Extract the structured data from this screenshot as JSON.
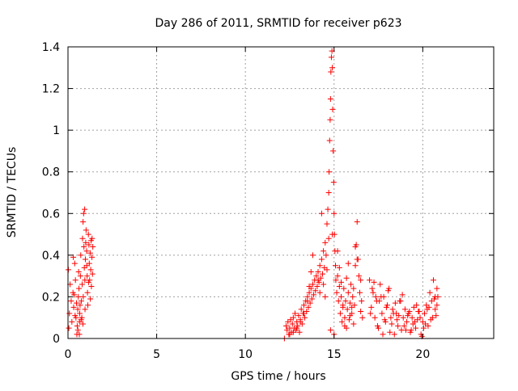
{
  "chart_data": {
    "type": "scatter",
    "title": "Day 286 of 2011, SRMTID for receiver p623",
    "xlabel": "GPS time / hours",
    "ylabel": "SRMTID / TECUs",
    "xlim": [
      0,
      24
    ],
    "ylim": [
      0,
      1.4
    ],
    "x_ticks": [
      0,
      5,
      10,
      15,
      20
    ],
    "x_tick_labels": [
      "0",
      "5",
      "10",
      "15",
      "20"
    ],
    "y_ticks": [
      0,
      0.2,
      0.4,
      0.6,
      0.8,
      1.0,
      1.2,
      1.4
    ],
    "y_tick_labels": [
      "0",
      "0.2",
      "0.4",
      "0.6",
      "0.8",
      "1",
      "1.2",
      "1.4"
    ],
    "grid": true,
    "marker": "+",
    "series": [
      {
        "name": "SRMTID",
        "color": "#ff0000",
        "x": [
          0.02,
          0.05,
          0.08,
          0.12,
          0.18,
          0.22,
          0.28,
          0.32,
          0.38,
          0.42,
          0.45,
          0.5,
          0.52,
          0.55,
          0.58,
          0.6,
          0.62,
          0.65,
          0.68,
          0.7,
          0.72,
          0.75,
          0.78,
          0.8,
          0.82,
          0.85,
          0.88,
          0.9,
          0.92,
          0.95,
          0.98,
          1.0,
          1.02,
          1.05,
          1.08,
          1.1,
          1.12,
          1.15,
          1.18,
          1.2,
          1.22,
          1.25,
          1.28,
          1.3,
          1.32,
          1.35,
          1.38,
          1.4,
          0.3,
          0.35,
          0.48,
          0.66,
          0.74,
          0.86,
          0.96,
          1.06,
          1.16,
          1.26,
          1.36,
          0.4,
          0.56,
          0.64,
          0.84,
          0.94,
          12.2,
          12.3,
          12.35,
          12.4,
          12.45,
          12.5,
          12.55,
          12.6,
          12.65,
          12.7,
          12.75,
          12.8,
          12.85,
          12.9,
          12.95,
          13.0,
          13.05,
          13.1,
          13.15,
          13.2,
          13.25,
          13.3,
          13.35,
          13.4,
          13.45,
          13.5,
          13.55,
          13.6,
          13.65,
          13.7,
          13.75,
          13.8,
          13.85,
          13.9,
          13.95,
          14.0,
          14.05,
          14.1,
          14.15,
          14.2,
          14.25,
          14.3,
          14.35,
          14.4,
          14.45,
          14.5,
          14.55,
          14.6,
          14.65,
          14.7,
          14.72,
          14.75,
          14.78,
          14.8,
          14.82,
          14.85,
          14.88,
          14.9,
          14.92,
          14.95,
          14.98,
          15.0,
          15.02,
          15.05,
          15.08,
          15.1,
          15.15,
          15.2,
          15.25,
          15.3,
          15.35,
          15.4,
          15.45,
          15.5,
          15.55,
          15.6,
          15.65,
          15.7,
          15.75,
          15.8,
          15.85,
          15.9,
          15.95,
          16.0,
          16.05,
          16.1,
          16.15,
          16.2,
          16.25,
          16.3,
          16.35,
          16.4,
          16.45,
          16.5,
          16.55,
          16.6,
          13.6,
          13.7,
          13.8,
          14.1,
          14.3,
          14.5,
          14.6,
          14.8,
          14.9,
          15.0,
          15.2,
          15.4,
          15.6,
          15.8,
          16.0,
          16.2,
          12.5,
          12.7,
          12.9,
          13.1,
          13.3,
          13.5,
          14.2,
          14.4,
          14.7,
          15.3,
          15.5,
          15.7,
          15.9,
          16.1,
          16.3,
          16.5,
          17.0,
          17.1,
          17.2,
          17.3,
          17.4,
          17.5,
          17.6,
          17.7,
          17.8,
          17.9,
          18.0,
          18.1,
          18.2,
          18.3,
          18.4,
          18.5,
          18.6,
          18.7,
          18.8,
          18.9,
          19.0,
          19.1,
          19.2,
          19.3,
          19.4,
          19.5,
          19.6,
          19.7,
          19.8,
          19.9,
          20.0,
          20.1,
          20.2,
          20.3,
          20.4,
          20.5,
          20.6,
          20.7,
          20.8,
          20.85,
          17.05,
          17.25,
          17.45,
          17.65,
          17.85,
          18.05,
          18.25,
          18.45,
          18.65,
          18.85,
          19.05,
          19.25,
          19.45,
          19.65,
          19.85,
          20.05,
          20.25,
          20.45,
          20.65,
          20.75,
          17.15,
          17.35,
          17.55,
          17.75,
          17.95,
          18.15,
          18.35,
          18.55,
          18.75,
          18.95,
          19.15,
          19.35,
          19.55,
          19.75,
          19.95,
          20.15,
          20.35,
          20.55,
          20.7,
          20.8
        ],
        "y": [
          0.33,
          0.05,
          0.12,
          0.26,
          0.18,
          0.08,
          0.22,
          0.15,
          0.36,
          0.28,
          0.1,
          0.02,
          0.06,
          0.14,
          0.2,
          0.32,
          0.24,
          0.08,
          0.16,
          0.3,
          0.4,
          0.18,
          0.1,
          0.26,
          0.48,
          0.56,
          0.6,
          0.44,
          0.34,
          0.28,
          0.38,
          0.46,
          0.52,
          0.42,
          0.3,
          0.22,
          0.16,
          0.5,
          0.45,
          0.36,
          0.28,
          0.41,
          0.33,
          0.47,
          0.25,
          0.39,
          0.31,
          0.44,
          0.39,
          0.21,
          0.17,
          0.12,
          0.09,
          0.2,
          0.14,
          0.35,
          0.27,
          0.19,
          0.48,
          0.11,
          0.04,
          0.02,
          0.07,
          0.62,
          0.0,
          0.06,
          0.04,
          0.08,
          0.02,
          0.05,
          0.09,
          0.03,
          0.07,
          0.1,
          0.05,
          0.12,
          0.04,
          0.08,
          0.06,
          0.11,
          0.03,
          0.09,
          0.14,
          0.07,
          0.12,
          0.16,
          0.1,
          0.18,
          0.13,
          0.2,
          0.15,
          0.22,
          0.17,
          0.24,
          0.19,
          0.26,
          0.21,
          0.28,
          0.23,
          0.3,
          0.25,
          0.32,
          0.27,
          0.35,
          0.29,
          0.38,
          0.31,
          0.42,
          0.34,
          0.46,
          0.4,
          0.55,
          0.62,
          0.7,
          0.8,
          0.95,
          1.05,
          1.15,
          1.28,
          1.35,
          1.38,
          1.3,
          1.1,
          0.9,
          0.75,
          0.6,
          0.5,
          0.42,
          0.35,
          0.28,
          0.22,
          0.3,
          0.18,
          0.25,
          0.12,
          0.2,
          0.08,
          0.15,
          0.24,
          0.1,
          0.18,
          0.05,
          0.14,
          0.22,
          0.09,
          0.17,
          0.26,
          0.12,
          0.2,
          0.07,
          0.16,
          0.35,
          0.45,
          0.56,
          0.38,
          0.3,
          0.22,
          0.28,
          0.18,
          0.1,
          0.25,
          0.32,
          0.4,
          0.28,
          0.6,
          0.2,
          0.33,
          0.04,
          0.5,
          0.02,
          0.42,
          0.27,
          0.06,
          0.36,
          0.15,
          0.44,
          0.02,
          0.03,
          0.05,
          0.08,
          0.12,
          0.18,
          0.22,
          0.26,
          0.48,
          0.34,
          0.16,
          0.29,
          0.11,
          0.24,
          0.38,
          0.13,
          0.28,
          0.15,
          0.22,
          0.1,
          0.18,
          0.05,
          0.26,
          0.12,
          0.2,
          0.08,
          0.16,
          0.24,
          0.1,
          0.14,
          0.02,
          0.12,
          0.06,
          0.18,
          0.04,
          0.1,
          0.14,
          0.08,
          0.12,
          0.03,
          0.1,
          0.15,
          0.05,
          0.09,
          0.13,
          0.02,
          0.08,
          0.12,
          0.16,
          0.06,
          0.22,
          0.18,
          0.28,
          0.14,
          0.24,
          0.2,
          0.12,
          0.27,
          0.06,
          0.2,
          0.09,
          0.23,
          0.07,
          0.17,
          0.11,
          0.21,
          0.04,
          0.13,
          0.07,
          0.16,
          0.1,
          0.05,
          0.14,
          0.09,
          0.19,
          0.11,
          0.24,
          0.2,
          0.18,
          0.02,
          0.15,
          0.03,
          0.12,
          0.09,
          0.18,
          0.06,
          0.11,
          0.04,
          0.08,
          0.13,
          0.01,
          0.07,
          0.15,
          0.1,
          0.2,
          0.16
        ]
      }
    ]
  }
}
